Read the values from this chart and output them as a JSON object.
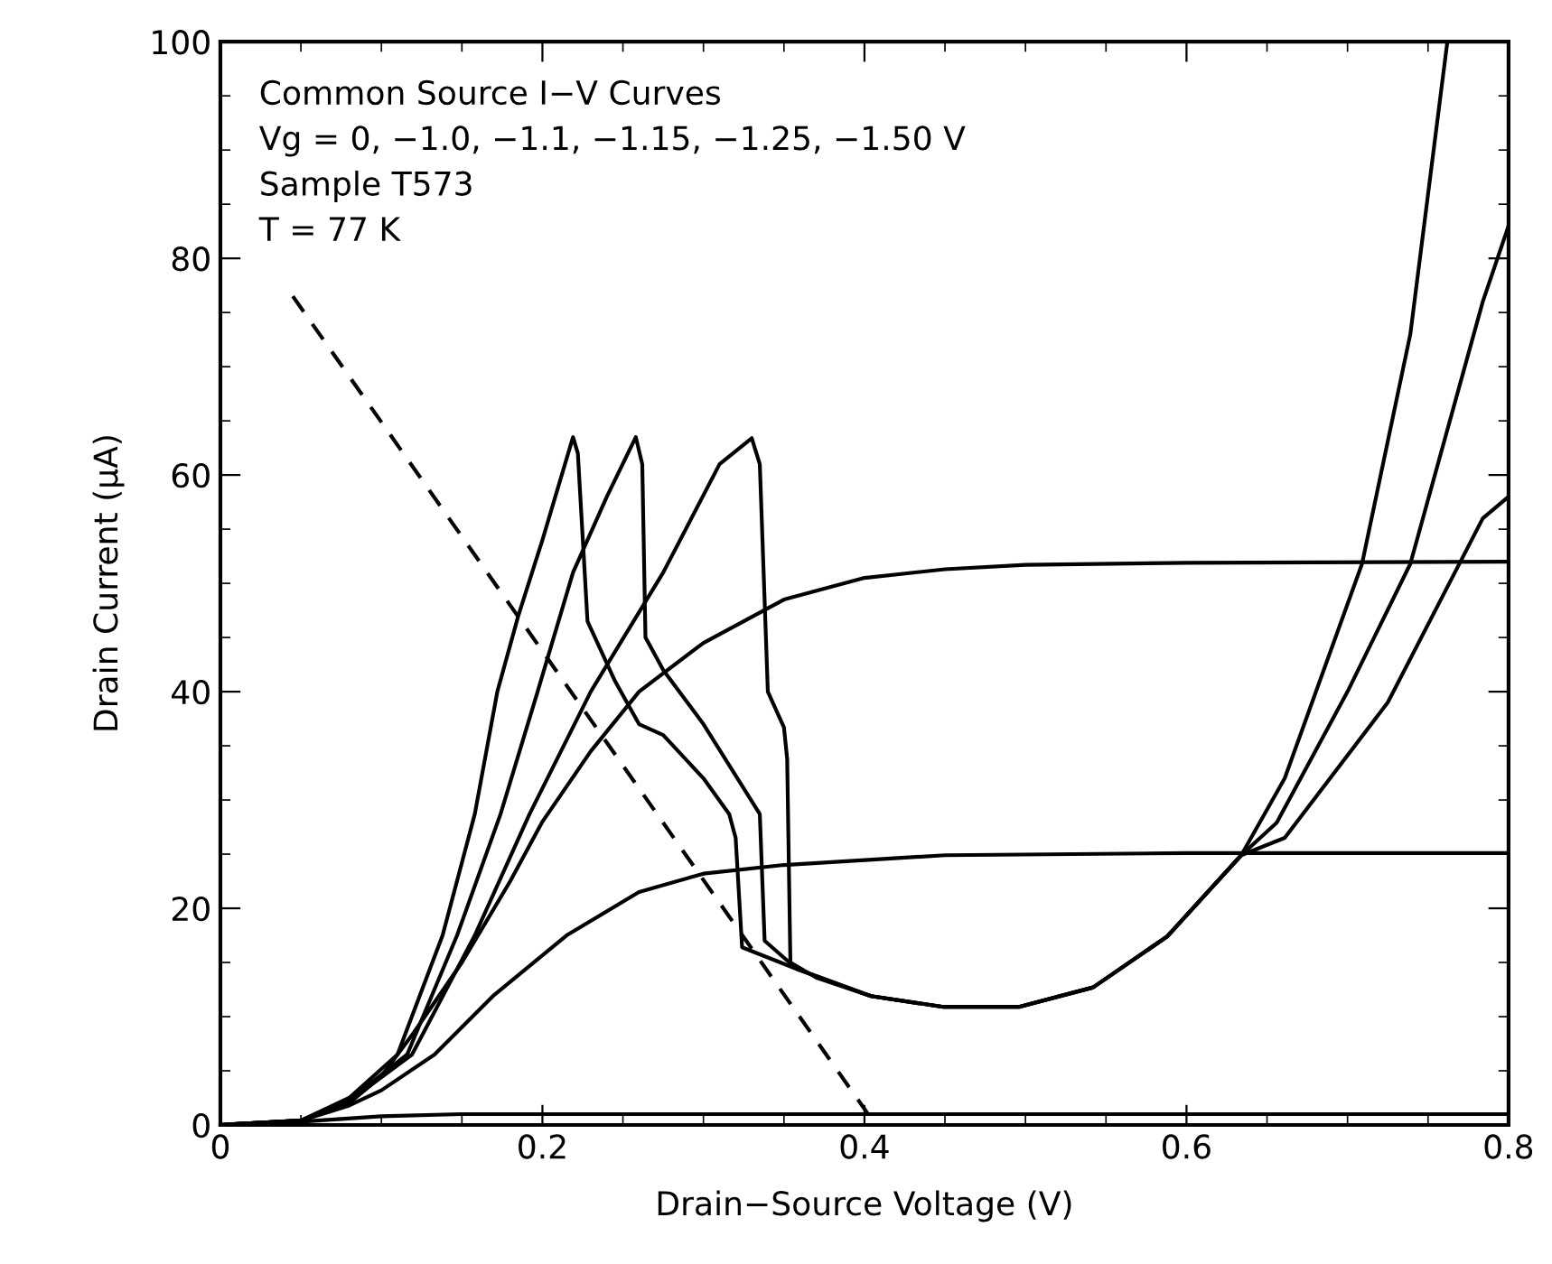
{
  "chart_data": {
    "type": "line",
    "xlabel": "Drain−Source Voltage (V)",
    "ylabel": "Drain Current (μA)",
    "annotations": [
      "Common Source I−V Curves",
      "Vg = 0, −1.0, −1.1, −1.15, −1.25, −1.50 V",
      "Sample T573",
      "T = 77 K"
    ],
    "xlim": [
      0,
      0.8
    ],
    "xticks": [
      0,
      0.2,
      0.4,
      0.6,
      0.8
    ],
    "ylim": [
      0,
      100
    ],
    "yticks": [
      0,
      20,
      40,
      60,
      80,
      100
    ],
    "grid": false,
    "legend": false,
    "marker": "none",
    "series": [
      {
        "color": "#000000",
        "line_style": "solid",
        "x": [
          0,
          0.05,
          0.08,
          0.11,
          0.138,
          0.158,
          0.172,
          0.185,
          0.2,
          0.219,
          0.222,
          0.228,
          0.245,
          0.26,
          0.275,
          0.3,
          0.316,
          0.32,
          0.324,
          0.358,
          0.404,
          0.449,
          0.496,
          0.542,
          0.588,
          0.634,
          0.661,
          0.709,
          0.739,
          0.762
        ],
        "values": [
          0,
          0.4,
          2.5,
          6.5,
          17.5,
          28.7,
          40,
          47,
          54,
          63.5,
          62,
          46.5,
          41,
          37,
          36,
          32,
          28.7,
          26.5,
          16.4,
          14.4,
          11.9,
          10.9,
          10.9,
          12.7,
          17.4,
          24.9,
          32,
          51.8,
          73,
          100
        ]
      },
      {
        "color": "#000000",
        "line_style": "solid",
        "x": [
          0,
          0.05,
          0.08,
          0.116,
          0.147,
          0.174,
          0.197,
          0.219,
          0.24,
          0.258,
          0.262,
          0.264,
          0.275,
          0.3,
          0.335,
          0.338,
          0.358,
          0.404,
          0.449,
          0.496,
          0.542,
          0.588,
          0.634,
          0.656,
          0.7,
          0.739,
          0.784,
          0.8
        ],
        "values": [
          0,
          0.4,
          2.3,
          6.5,
          17.5,
          28.7,
          40,
          51,
          58,
          63.5,
          61,
          45,
          42,
          37,
          28.7,
          17,
          14.4,
          11.9,
          10.9,
          10.9,
          12.7,
          17.4,
          24.9,
          27.9,
          40,
          51.8,
          76,
          83
        ]
      },
      {
        "color": "#000000",
        "line_style": "solid",
        "x": [
          0,
          0.05,
          0.08,
          0.119,
          0.158,
          0.192,
          0.23,
          0.275,
          0.31,
          0.33,
          0.335,
          0.34,
          0.35,
          0.352,
          0.354,
          0.37,
          0.404,
          0.449,
          0.496,
          0.542,
          0.588,
          0.634,
          0.661,
          0.725,
          0.784,
          0.8
        ],
        "values": [
          0,
          0.4,
          2.2,
          6.5,
          17.5,
          28.7,
          40,
          51,
          61,
          63.4,
          61,
          40,
          36.7,
          33.8,
          15,
          13.6,
          11.9,
          10.9,
          10.9,
          12.7,
          17.4,
          24.9,
          26.5,
          39,
          56,
          58
        ]
      },
      {
        "color": "#000000",
        "line_style": "solid",
        "x": [
          0,
          0.05,
          0.08,
          0.1,
          0.12,
          0.15,
          0.18,
          0.2,
          0.23,
          0.26,
          0.3,
          0.35,
          0.4,
          0.45,
          0.5,
          0.6,
          0.8
        ],
        "values": [
          0,
          0.4,
          2,
          4.5,
          8.5,
          15,
          22.5,
          28,
          34.5,
          40,
          44.5,
          48.5,
          50.5,
          51.3,
          51.7,
          51.9,
          52
        ]
      },
      {
        "color": "#000000",
        "line_style": "solid",
        "x": [
          0,
          0.05,
          0.08,
          0.1,
          0.133,
          0.17,
          0.215,
          0.26,
          0.3,
          0.35,
          0.45,
          0.6,
          0.8
        ],
        "values": [
          0,
          0.4,
          1.8,
          3.2,
          6.5,
          12,
          17.5,
          21.5,
          23.2,
          24,
          24.9,
          25.1,
          25.1
        ]
      },
      {
        "color": "#000000",
        "line_style": "solid",
        "x": [
          0,
          0.05,
          0.1,
          0.15,
          0.8
        ],
        "values": [
          0,
          0.3,
          0.8,
          1,
          1
        ]
      },
      {
        "color": "#000000",
        "line_style": "dashed",
        "x": [
          0.045,
          0.407
        ],
        "values": [
          76.5,
          0
        ]
      }
    ]
  }
}
